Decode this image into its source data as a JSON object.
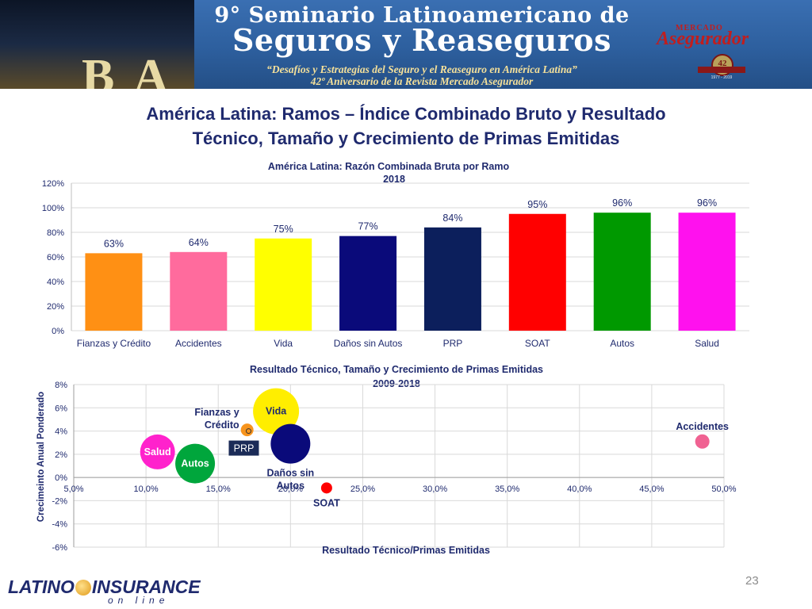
{
  "banner": {
    "line1": "9° Seminario Latinoamericano de",
    "line2": "Seguros y Reaseguros",
    "line3": "“Desafíos y Estrategias del Seguro y el Reaseguro en América Latina”",
    "line4": "42º Aniversario de la Revista Mercado Asegurador",
    "brand_top": "MERCADO",
    "brand_main": "Asegurador",
    "seal_text": "42",
    "seal_years": "1977 - 2019",
    "photo_letters": "BA"
  },
  "slide": {
    "title_line1": "América Latina: Ramos – Índice Combinado Bruto y Resultado",
    "title_line2": "Técnico, Tamaño y Crecimiento de Primas Emitidas",
    "page_number": "23"
  },
  "footer": {
    "logo_left": "LATINO",
    "logo_right": "INSURANCE",
    "logo_sub": "on line"
  },
  "colors": {
    "title": "#1f2a6e",
    "axis_text": "#1f2a6e",
    "grid": "#d9d9d9"
  },
  "chart_data": [
    {
      "type": "bar",
      "title": "América Latina: Razón Combinada Bruta por Ramo",
      "subtitle": "2018",
      "categories": [
        "Fianzas y Crédito",
        "Accidentes",
        "Vida",
        "Daños sin Autos",
        "PRP",
        "SOAT",
        "Autos",
        "Salud"
      ],
      "values": [
        63,
        64,
        75,
        77,
        84,
        95,
        96,
        96
      ],
      "value_labels": [
        "63%",
        "64%",
        "75%",
        "77%",
        "84%",
        "95%",
        "96%",
        "96%"
      ],
      "colors": [
        "#ff9014",
        "#ff6b9d",
        "#ffff00",
        "#0a0a7a",
        "#0c1f5c",
        "#ff0000",
        "#009900",
        "#ff11ee"
      ],
      "ylim": [
        0,
        120
      ],
      "yticks": [
        "0%",
        "20%",
        "40%",
        "60%",
        "80%",
        "100%",
        "120%"
      ],
      "ytick_values": [
        0,
        20,
        40,
        60,
        80,
        100,
        120
      ],
      "grid": true
    },
    {
      "type": "scatter",
      "title": "Resultado Técnico, Tamaño y Crecimiento de Primas Emitidas",
      "subtitle": "2009-2018",
      "xlabel": "Resultado Técnico/Primas Emitidas",
      "ylabel": "Crecimeinto Anual Ponderado",
      "xlim": [
        5,
        50
      ],
      "ylim": [
        -6,
        8
      ],
      "xticks": [
        "5,0%",
        "10,0%",
        "15,0%",
        "20,0%",
        "25,0%",
        "30,0%",
        "35,0%",
        "40,0%",
        "45,0%",
        "50,0%"
      ],
      "xtick_values": [
        5,
        10,
        15,
        20,
        25,
        30,
        35,
        40,
        45,
        50
      ],
      "yticks": [
        "-6%",
        "-4%",
        "-2%",
        "0%",
        "2%",
        "4%",
        "6%",
        "8%"
      ],
      "ytick_values": [
        -6,
        -4,
        -2,
        0,
        2,
        4,
        6,
        8
      ],
      "grid": true,
      "points": [
        {
          "name": "Vida",
          "x": 19.0,
          "y": 5.7,
          "size": 29,
          "color": "#ffee00",
          "label_position": "inside",
          "label_color": "#1f2a6e"
        },
        {
          "name": "Fianzas y\nCrédito",
          "x": 17.0,
          "y": 4.1,
          "size": 8,
          "color": "#f7941d",
          "label_position": "left",
          "label_color": "#1f2a6e"
        },
        {
          "name": "PRP",
          "x": 17.1,
          "y": 4.0,
          "size": 3,
          "color": "#ff9900",
          "label_position": "below-left-box",
          "label_color": "#ffffff"
        },
        {
          "name": "Salud",
          "x": 10.8,
          "y": 2.2,
          "size": 22,
          "color": "#ff22cc",
          "label_position": "inside",
          "label_color": "#ffffff"
        },
        {
          "name": "Autos",
          "x": 13.4,
          "y": 1.2,
          "size": 25,
          "color": "#00a63c",
          "label_position": "inside",
          "label_color": "#ffffff"
        },
        {
          "name": "Daños sin\nAutos",
          "x": 20.0,
          "y": 2.9,
          "size": 25,
          "color": "#0a0a7a",
          "label_position": "below",
          "label_color": "#1f2a6e"
        },
        {
          "name": "SOAT",
          "x": 22.5,
          "y": -0.9,
          "size": 7,
          "color": "#ff0000",
          "label_position": "below",
          "label_color": "#1f2a6e"
        },
        {
          "name": "Accidentes",
          "x": 48.5,
          "y": 3.1,
          "size": 9,
          "color": "#f06292",
          "label_position": "above",
          "label_color": "#1f2a6e"
        }
      ]
    }
  ]
}
